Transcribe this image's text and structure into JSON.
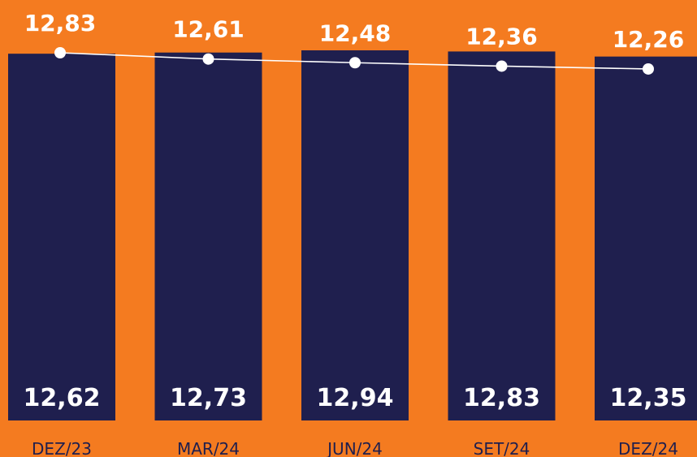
{
  "chart_data": {
    "type": "bar",
    "categories": [
      "DEZ/23",
      "MAR/24",
      "JUN/24",
      "SET/24",
      "DEZ/24"
    ],
    "series": [
      {
        "type": "bar",
        "values": [
          12.62,
          12.73,
          12.94,
          12.83,
          12.35
        ],
        "labels": [
          "12,62",
          "12,73",
          "12,94",
          "12,83",
          "12,35"
        ]
      },
      {
        "type": "line",
        "values": [
          12.83,
          12.61,
          12.48,
          12.36,
          12.26
        ],
        "labels": [
          "12,83",
          "12,61",
          "12,48",
          "12,36",
          "12,26"
        ]
      }
    ],
    "colors": {
      "background": "#F47B20",
      "bar": "#1F1F4E",
      "line": "#FFFFFF",
      "text": "#FFFFFF",
      "axis_text": "#1F1F4E"
    },
    "grid": false
  }
}
